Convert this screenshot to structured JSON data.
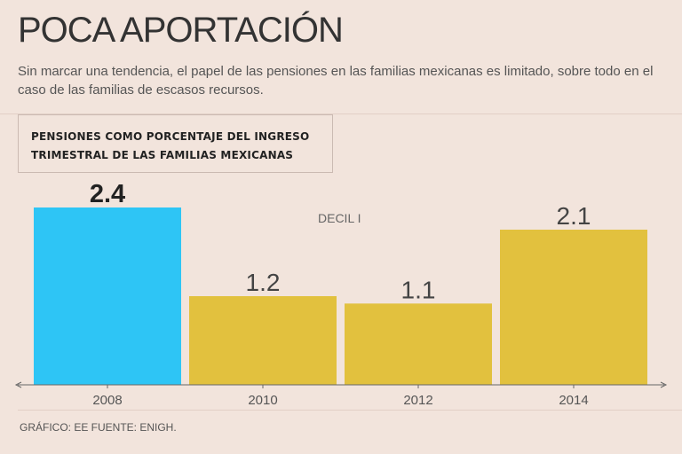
{
  "header": {
    "title": "POCA APORTACIÓN",
    "subtitle": "Sin marcar una tendencia, el papel de las pensiones en las familias mexicanas es limitado, sobre todo en el caso de las familias de escasos recursos."
  },
  "chart_box": {
    "line1": "PENSIONES COMO PORCENTAJE DEL INGRESO",
    "line2": "TRIMESTRAL DE LAS FAMILIAS MEXICANAS"
  },
  "annotation": "DECIL I",
  "footer": {
    "source": "GRÁFICO: EE FUENTE: ENIGH."
  },
  "colors": {
    "highlight": "#2ec5f5",
    "bar": "#e2c13e",
    "axis": "#666666"
  },
  "chart_data": {
    "type": "bar",
    "title": "PENSIONES COMO PORCENTAJE DEL INGRESO TRIMESTRAL DE LAS FAMILIAS MEXICANAS",
    "categories": [
      "2008",
      "2010",
      "2012",
      "2014"
    ],
    "values": [
      2.4,
      1.2,
      1.1,
      2.1
    ],
    "labels": [
      "2.4",
      "1.2",
      "1.1",
      "2.1"
    ],
    "highlight_index": 0,
    "series_name": "DECIL I",
    "xlabel": "",
    "ylabel": "",
    "ylim": [
      0,
      2.4
    ],
    "grid": false
  }
}
